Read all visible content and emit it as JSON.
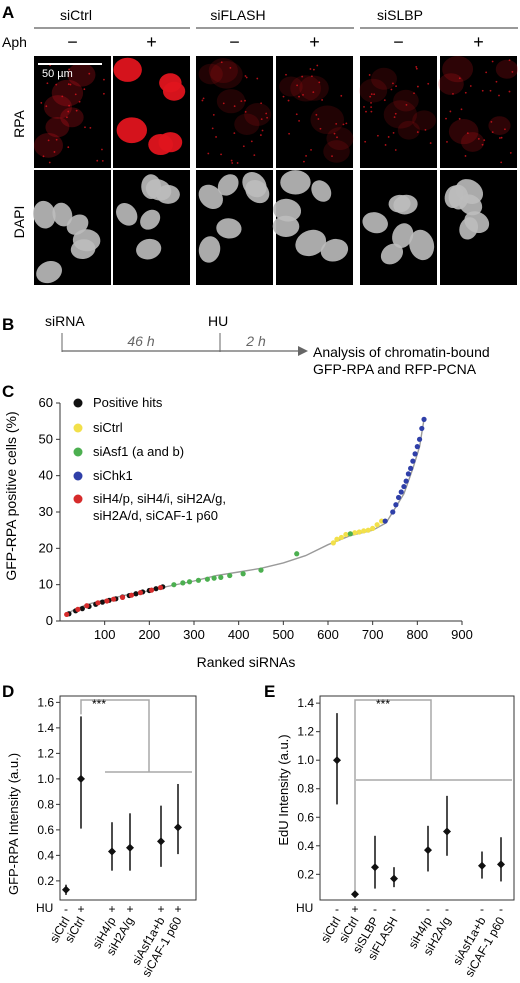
{
  "panel_a": {
    "letter": "A",
    "conditions": [
      "siCtrl",
      "siFLASH",
      "siSLBP"
    ],
    "aph_label": "Aph",
    "aph_states": [
      "−",
      "+"
    ],
    "row_labels": [
      "RPA",
      "DAPI"
    ],
    "scale_bar": "50 µm",
    "rpa_level": [
      [
        0.25,
        0.95
      ],
      [
        0.15,
        0.15
      ],
      [
        0.15,
        0.2
      ]
    ]
  },
  "panel_b": {
    "letter": "B",
    "start": "siRNA",
    "treat": "HU",
    "t1": "46 h",
    "t2": "2 h",
    "analysis_line1": "Analysis of chromatin-bound",
    "analysis_line2": "GFP-RPA and RFP-PCNA"
  },
  "colors": {
    "positive": "#111111",
    "ctrl": "#f2e04a",
    "asf1": "#4caf50",
    "chk1": "#2f3fa8",
    "histone": "#d62b2b",
    "curve": "#9a9a9a",
    "bracket": "#a8a8a8",
    "rpa_red": "#e0141e"
  },
  "chart_data": [
    {
      "id": "C",
      "type": "scatter",
      "xlabel": "Ranked siRNAs",
      "ylabel": "GFP-RPA positive cells (%)",
      "xlim": [
        0,
        900
      ],
      "ylim": [
        0,
        60
      ],
      "xticks": [
        100,
        200,
        300,
        400,
        500,
        600,
        700,
        800,
        900
      ],
      "yticks": [
        0,
        10,
        20,
        30,
        40,
        50,
        60
      ],
      "legend": [
        "Positive hits",
        "siCtrl",
        "siAsf1 (a and b)",
        "siChk1",
        "siH4/p, siH4/i, siH2A/g,",
        "siH2A/d, siCAF-1 p60"
      ],
      "curve": [
        [
          10,
          1.5
        ],
        [
          30,
          3
        ],
        [
          60,
          4.5
        ],
        [
          100,
          5.8
        ],
        [
          150,
          7.2
        ],
        [
          200,
          8.3
        ],
        [
          240,
          9.5
        ],
        [
          300,
          11
        ],
        [
          350,
          12.5
        ],
        [
          400,
          13.5
        ],
        [
          450,
          14.5
        ],
        [
          500,
          16
        ],
        [
          550,
          18
        ],
        [
          600,
          21
        ],
        [
          650,
          23.5
        ],
        [
          700,
          25
        ],
        [
          730,
          27
        ],
        [
          750,
          31
        ],
        [
          770,
          35
        ],
        [
          790,
          42
        ],
        [
          805,
          48
        ],
        [
          815,
          55.5
        ]
      ],
      "series": [
        {
          "name": "Positive hits",
          "color": "positive",
          "x": [
            20,
            35,
            50,
            65,
            80,
            95,
            110,
            125,
            140,
            155,
            170,
            185,
            200,
            215,
            230
          ],
          "y": [
            2,
            2.8,
            3.4,
            4,
            4.6,
            5.2,
            5.7,
            6.1,
            6.6,
            7,
            7.5,
            8,
            8.4,
            8.9,
            9.4
          ]
        },
        {
          "name": "siCtrl",
          "color": "ctrl",
          "x": [
            612,
            620,
            630,
            640,
            650,
            660,
            670,
            680,
            690,
            700,
            710,
            720
          ],
          "y": [
            21.5,
            22.5,
            23,
            23.8,
            24,
            24.3,
            24.5,
            24.8,
            25,
            25.5,
            26.5,
            27.5
          ]
        },
        {
          "name": "siAsf1 (a and b)",
          "color": "asf1",
          "x": [
            255,
            275,
            290,
            310,
            330,
            345,
            360,
            380,
            410,
            450,
            530,
            650
          ],
          "y": [
            10,
            10.5,
            10.8,
            11.2,
            11.5,
            11.8,
            12,
            12.5,
            13,
            14,
            18.5,
            24
          ]
        },
        {
          "name": "siChk1",
          "color": "chk1",
          "x": [
            728,
            745,
            752,
            758,
            764,
            770,
            775,
            780,
            785,
            790,
            795,
            800,
            805,
            810,
            815
          ],
          "y": [
            27.5,
            30,
            32,
            34,
            35.5,
            37,
            38.5,
            40.5,
            42,
            44,
            46,
            48,
            50,
            53,
            55.5
          ]
        },
        {
          "name": "siH4/p, siH4/i, siH2A/g, siH2A/d, siCAF-1 p60",
          "color": "histone",
          "x": [
            15,
            40,
            60,
            85,
            105,
            120,
            140,
            160,
            180,
            205,
            225
          ],
          "y": [
            1.8,
            3.2,
            4.2,
            5,
            5.5,
            6,
            6.5,
            7.1,
            7.8,
            8.5,
            9.2
          ]
        }
      ]
    },
    {
      "id": "D",
      "type": "scatter",
      "ylabel": "GFP-RPA Intensity (a.u.)",
      "ylim": [
        0.05,
        1.65
      ],
      "yticks": [
        0.2,
        0.4,
        0.6,
        0.8,
        1.0,
        1.2,
        1.4,
        1.6
      ],
      "ytick_labels": [
        "0.2",
        "0.4",
        "0.6",
        "0.8",
        "1.0",
        "1.2",
        "1.4",
        "1.6"
      ],
      "significance": "***",
      "hu_label": "HU",
      "categories": [
        "siCtrl",
        "siCtrl",
        "siH4/p",
        "siH2A/g",
        "siAsf1a+b",
        "siCAF-1 p60"
      ],
      "hu": [
        "-",
        "+",
        "+",
        "+",
        "+",
        "+"
      ],
      "values": [
        0.13,
        1.0,
        0.43,
        0.46,
        0.51,
        0.62
      ],
      "err_low": [
        0.09,
        0.61,
        0.28,
        0.28,
        0.31,
        0.41
      ],
      "err_high": [
        0.17,
        1.49,
        0.66,
        0.73,
        0.79,
        0.96
      ]
    },
    {
      "id": "E",
      "type": "scatter",
      "ylabel": "EdU Intensity (a.u.)",
      "ylim": [
        0.02,
        1.45
      ],
      "yticks": [
        0.2,
        0.4,
        0.6,
        0.8,
        1.0,
        1.2,
        1.4
      ],
      "ytick_labels": [
        "0.2",
        "0.4",
        "0.6",
        "0.8",
        "1.0",
        "1.2",
        "1.4"
      ],
      "significance": "***",
      "hu_label": "HU",
      "categories": [
        "siCtrl",
        "siCtrl",
        "siSLBP",
        "siFLASH",
        "siH4/p",
        "siH2A/g",
        "siAsf1a+b",
        "siCAF-1 p60"
      ],
      "hu": [
        "-",
        "+",
        "-",
        "-",
        "-",
        "-",
        "-",
        "-"
      ],
      "values": [
        1.0,
        0.06,
        0.25,
        0.17,
        0.37,
        0.5,
        0.26,
        0.27
      ],
      "err_low": [
        0.69,
        0.05,
        0.1,
        0.11,
        0.22,
        0.33,
        0.17,
        0.15
      ],
      "err_high": [
        1.33,
        0.07,
        0.47,
        0.25,
        0.54,
        0.75,
        0.36,
        0.46
      ]
    }
  ]
}
